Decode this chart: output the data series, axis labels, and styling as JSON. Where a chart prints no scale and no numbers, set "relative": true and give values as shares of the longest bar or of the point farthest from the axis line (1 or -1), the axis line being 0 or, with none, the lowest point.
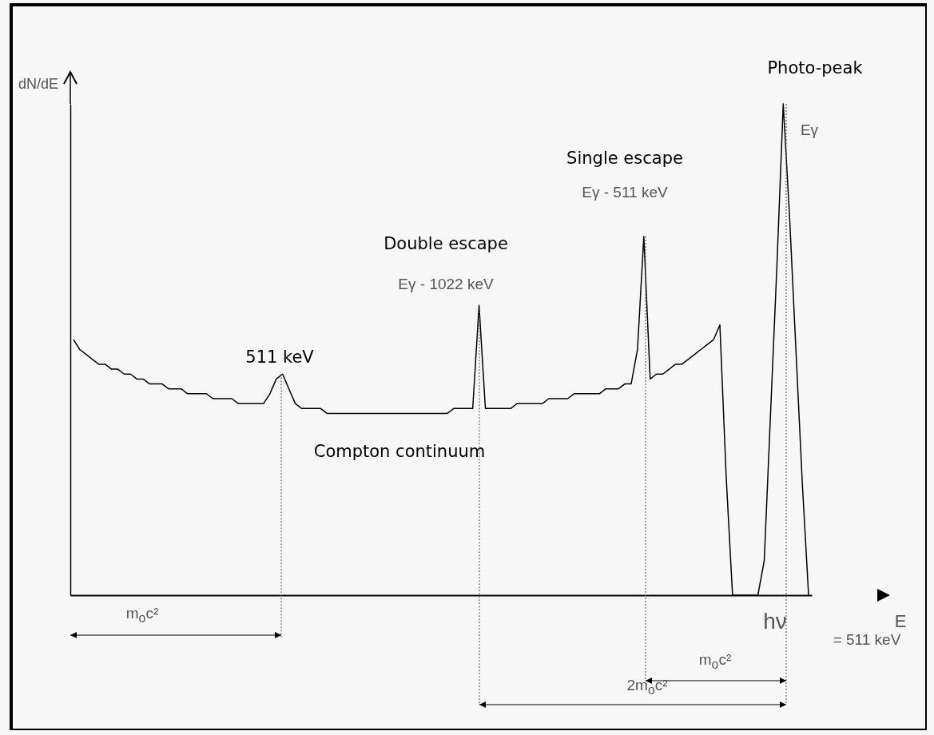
{
  "chart_data": {
    "type": "line",
    "relative": true,
    "xlabel": "E",
    "ylabel": "dN/dE",
    "categories": [
      null,
      null,
      null,
      null,
      null,
      null,
      null,
      null,
      null,
      null,
      null,
      null,
      null,
      null,
      null,
      null,
      null,
      null,
      null,
      null,
      null,
      null,
      null,
      null,
      null,
      null,
      null,
      null,
      null,
      null,
      null,
      null,
      null,
      null,
      null,
      null,
      null,
      null,
      null,
      null,
      null,
      null,
      null,
      null,
      null,
      null,
      null,
      null,
      null,
      null,
      null,
      null,
      null,
      null,
      null,
      null,
      null,
      null,
      null,
      null,
      null,
      null,
      null,
      null,
      null,
      null,
      null,
      null,
      null,
      null,
      null,
      null,
      null,
      null,
      null,
      null,
      null,
      null,
      null,
      null,
      null,
      null,
      null,
      null,
      null,
      null,
      null,
      null,
      null,
      null,
      null,
      null,
      null,
      null,
      null,
      null,
      null,
      null,
      null,
      null,
      null,
      null,
      null,
      null,
      null,
      null,
      null,
      null,
      null,
      null,
      null,
      null,
      null,
      null,
      null,
      null,
      null
    ],
    "series": [
      {
        "color": "#000000",
        "values": [
          0.52,
          0.5,
          0.49,
          0.48,
          0.47,
          0.47,
          0.46,
          0.46,
          0.45,
          0.45,
          0.44,
          0.44,
          0.43,
          0.43,
          0.43,
          0.42,
          0.42,
          0.42,
          0.41,
          0.41,
          0.41,
          0.41,
          0.4,
          0.4,
          0.4,
          0.4,
          0.39,
          0.39,
          0.39,
          0.39,
          0.39,
          0.41,
          0.44,
          0.45,
          0.42,
          0.39,
          0.38,
          0.38,
          0.38,
          0.38,
          0.37,
          0.37,
          0.37,
          0.37,
          0.37,
          0.37,
          0.37,
          0.37,
          0.37,
          0.37,
          0.37,
          0.37,
          0.37,
          0.37,
          0.37,
          0.37,
          0.37,
          0.37,
          0.37,
          0.37,
          0.38,
          0.38,
          0.38,
          0.38,
          0.59,
          0.38,
          0.38,
          0.38,
          0.38,
          0.38,
          0.39,
          0.39,
          0.39,
          0.39,
          0.39,
          0.4,
          0.4,
          0.4,
          0.4,
          0.41,
          0.41,
          0.41,
          0.41,
          0.41,
          0.42,
          0.42,
          0.42,
          0.43,
          0.43,
          0.5,
          0.73,
          0.44,
          0.45,
          0.45,
          0.46,
          0.47,
          0.47,
          0.48,
          0.49,
          0.5,
          0.51,
          0.52,
          0.55,
          0.24,
          0,
          0,
          0,
          0,
          0,
          0.07,
          0.37,
          0.67,
          1.0,
          0.77,
          0.5,
          0.23,
          0
        ]
      }
    ],
    "annotations": [
      "Photo-peak",
      "Eγ",
      "Single escape",
      "Eγ - 511 keV",
      "Double escape",
      "Eγ - 1022 keV",
      "511 keV",
      "Compton continuum",
      "m$_{o}$c²",
      "m$_{o}$c²",
      "2m$_{o}$c²",
      "hν",
      "= 511 keV"
    ]
  }
}
